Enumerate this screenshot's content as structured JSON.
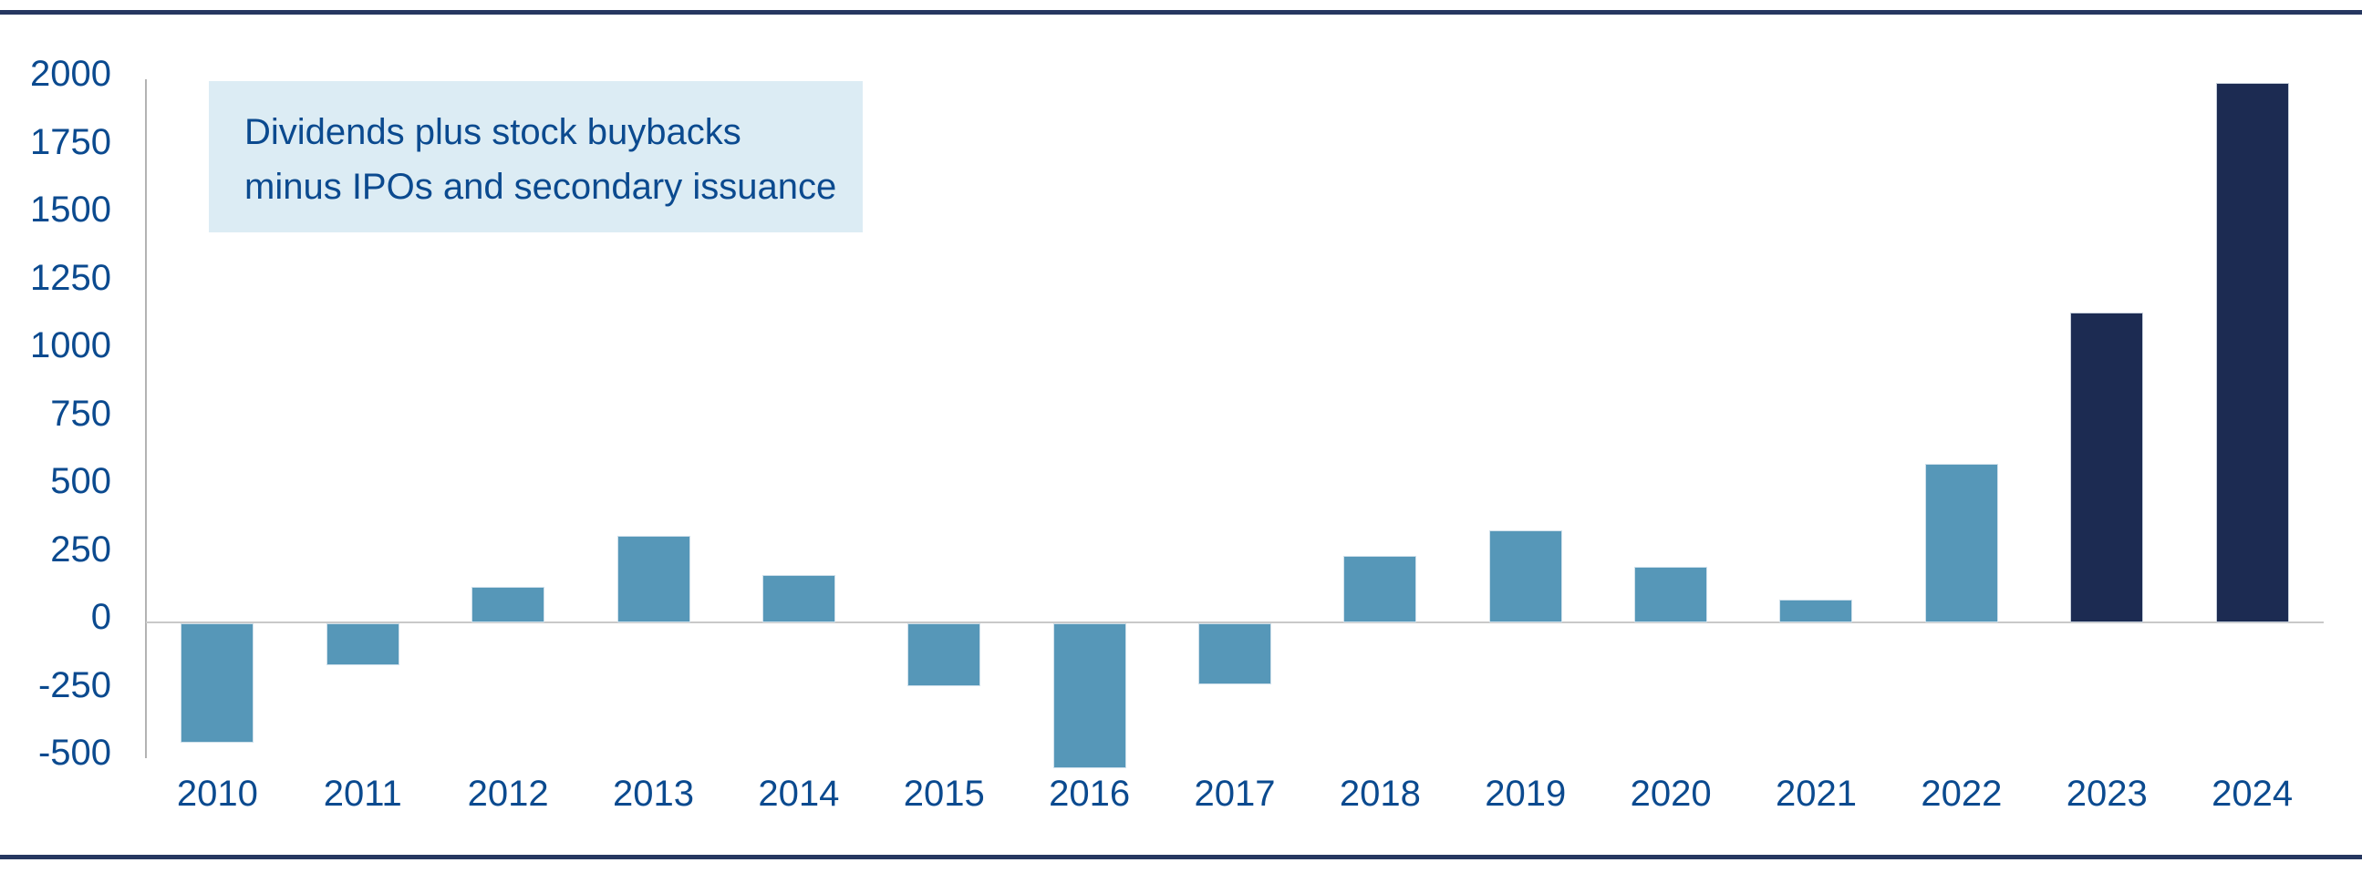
{
  "page": {
    "background": "#ffffff"
  },
  "borders": {
    "top_color": "#263760",
    "bottom_color": "#263760"
  },
  "annotation": {
    "lines": [
      "Dividends plus stock buybacks",
      "minus IPOs and secondary issuance"
    ],
    "background": "#dcecf4",
    "text_color": "#0b4a8f"
  },
  "chart_data": {
    "type": "bar",
    "title": "",
    "xlabel": "",
    "ylabel": "",
    "categories": [
      "2010",
      "2011",
      "2012",
      "2013",
      "2014",
      "2015",
      "2016",
      "2017",
      "2018",
      "2019",
      "2020",
      "2021",
      "2022",
      "2023",
      "2024"
    ],
    "values": [
      -440,
      -155,
      130,
      320,
      175,
      -230,
      -535,
      -225,
      245,
      340,
      205,
      85,
      585,
      1140,
      1985
    ],
    "highlight_categories": [
      "2023",
      "2024"
    ],
    "yticks": [
      2000,
      1750,
      1500,
      1250,
      1000,
      750,
      500,
      250,
      0,
      -250,
      -500
    ],
    "ylim": [
      -560,
      2000
    ],
    "grid": "zero-line-only",
    "legend": "none",
    "colors": {
      "bar": "#5697b8",
      "bar_highlight": "#1c2b52",
      "axis_line": "#b3b3b3",
      "zero_line": "#c9c9c9",
      "tick_text": "#0b4a8f"
    }
  }
}
